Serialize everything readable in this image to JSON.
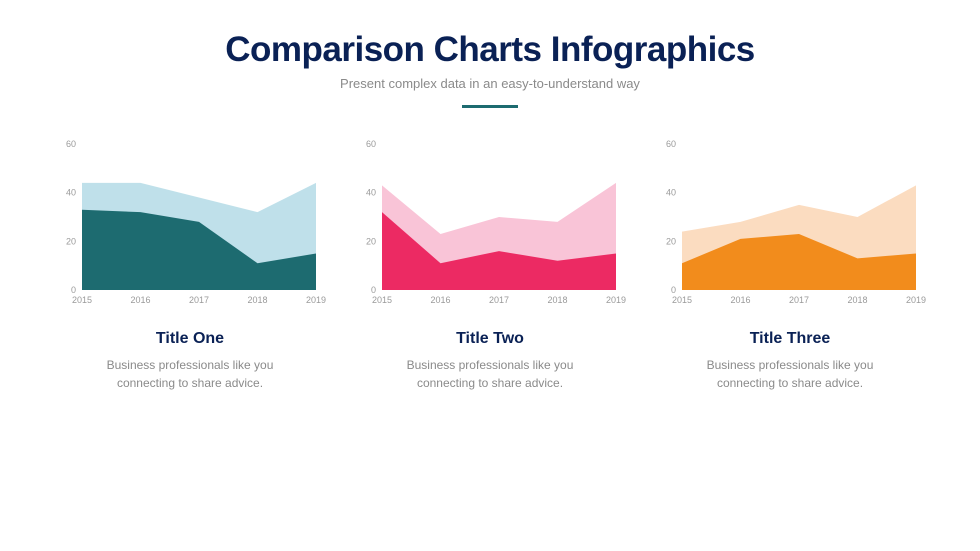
{
  "header": {
    "title": "Comparison Charts Infographics",
    "subtitle": "Present complex data in an easy-to-understand way",
    "divider_color": "#1d6b70"
  },
  "axis_label_color": "#9a9a9a",
  "axis_label_fontsize": 9,
  "chart_title_color": "#0a2155",
  "chart_title_fontsize": 16,
  "chart_desc_color": "#8a8a8a",
  "chart_desc_fontsize": 12,
  "background_color": "#ffffff",
  "charts": [
    {
      "id": "chart-one",
      "type": "area",
      "title": "Title One",
      "description": "Business professionals like you connecting to share advice.",
      "x_categories": [
        "2015",
        "2016",
        "2017",
        "2018",
        "2019"
      ],
      "ylim": [
        0,
        60
      ],
      "ytick_step": 20,
      "series": [
        {
          "name": "back",
          "values": [
            44,
            44,
            38,
            32,
            44
          ],
          "fill": "#bfe0ea"
        },
        {
          "name": "front",
          "values": [
            33,
            32,
            28,
            11,
            15
          ],
          "fill": "#1d6b70"
        }
      ]
    },
    {
      "id": "chart-two",
      "type": "area",
      "title": "Title Two",
      "description": "Business professionals like you connecting to share advice.",
      "x_categories": [
        "2015",
        "2016",
        "2017",
        "2018",
        "2019"
      ],
      "ylim": [
        0,
        60
      ],
      "ytick_step": 20,
      "series": [
        {
          "name": "back",
          "values": [
            43,
            23,
            30,
            28,
            44
          ],
          "fill": "#f9c4d7"
        },
        {
          "name": "front",
          "values": [
            32,
            11,
            16,
            12,
            15
          ],
          "fill": "#ec2a63"
        }
      ]
    },
    {
      "id": "chart-three",
      "type": "area",
      "title": "Title Three",
      "description": "Business professionals like you connecting to share advice.",
      "x_categories": [
        "2015",
        "2016",
        "2017",
        "2018",
        "2019"
      ],
      "ylim": [
        0,
        60
      ],
      "ytick_step": 20,
      "series": [
        {
          "name": "back",
          "values": [
            24,
            28,
            35,
            30,
            43
          ],
          "fill": "#fbdcc0"
        },
        {
          "name": "front",
          "values": [
            11,
            21,
            23,
            13,
            15
          ],
          "fill": "#f28c1c"
        }
      ]
    }
  ]
}
